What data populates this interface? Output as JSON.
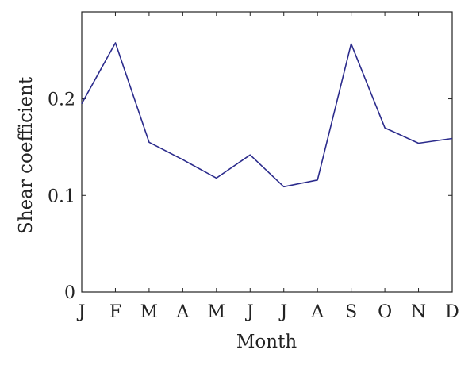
{
  "chart_data": {
    "type": "line",
    "title": "",
    "xlabel": "Month",
    "ylabel": "Shear coefficient",
    "categories": [
      "J",
      "F",
      "M",
      "A",
      "M",
      "J",
      "J",
      "A",
      "S",
      "O",
      "N",
      "D"
    ],
    "series": [
      {
        "values": [
          0.195,
          0.258,
          0.155,
          0.137,
          0.118,
          0.142,
          0.109,
          0.116,
          0.257,
          0.17,
          0.154,
          0.159
        ],
        "color": "#2b2b8c"
      }
    ],
    "ylim": [
      0,
      0.29
    ],
    "yticks": [
      0,
      0.1,
      0.2
    ],
    "ytick_labels": [
      "0",
      "0.1",
      "0.2"
    ],
    "grid": false,
    "legend": "none"
  }
}
